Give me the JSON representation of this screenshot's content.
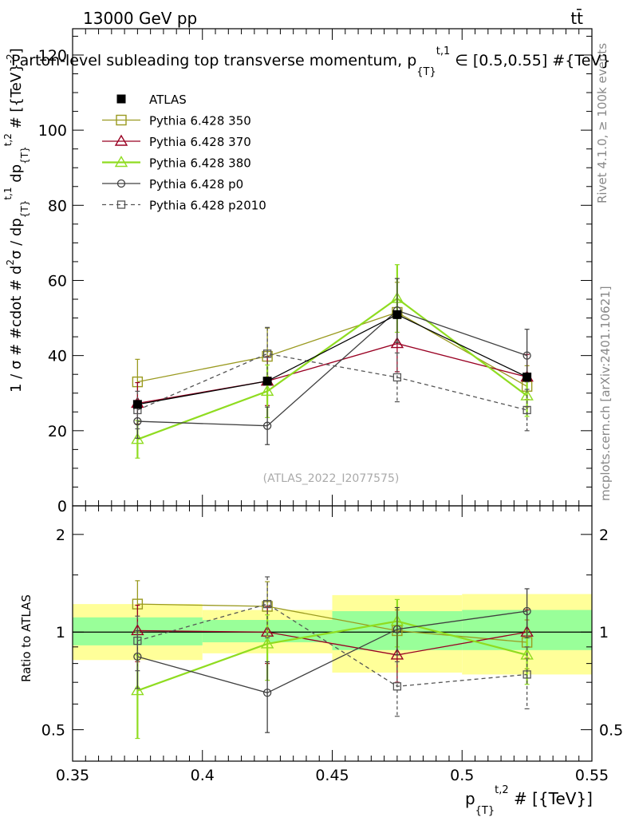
{
  "header": {
    "energy": "13000 GeV pp",
    "process": "tt̄"
  },
  "side": {
    "rivet": "Rivet 4.1.0, ≥ 100k events",
    "source": "mcplots.cern.ch [arXiv:2401.10621]"
  },
  "chart_data": [
    {
      "type": "line",
      "title": "Parton-level subleading top transverse momentum, p_{T}^{t,1} ∈ [0.5,0.55] #{TeV}",
      "title_parts": {
        "main": "Parton-level subleading top transverse momentum, p",
        "sub": "{T}",
        "sup": "t,1",
        "tail": " ∈ [0.5,0.55] #{TeV}"
      },
      "ylabel": "1 / σ # #cdot # d²σ / dp_{T}^{t,1} dp_{T}^{t,2} # [{TeV}^{-2}]",
      "ylabel_parts": {
        "a": "1 / σ # #cdot # d",
        "b": "2",
        "c": "σ / dp",
        "d": "{T}",
        "e": "t,1",
        "f": " dp",
        "g": "{T}",
        "h": "t,2",
        "i": " # [{TeV}",
        "j": "-2",
        "k": "]"
      },
      "xlim": [
        0.35,
        0.55
      ],
      "ylim": [
        0,
        127
      ],
      "yticks": [
        0,
        20,
        40,
        60,
        80,
        100,
        120
      ],
      "ytick_labels": [
        "0",
        "20",
        "40",
        "60",
        "80",
        "100",
        "120"
      ],
      "watermark": "(ATLAS_2022_I2077575)",
      "x": [
        0.375,
        0.425,
        0.475,
        0.525
      ],
      "bin_edges": [
        0.35,
        0.4,
        0.45,
        0.5,
        0.55
      ],
      "series": [
        {
          "name": "ATLAS",
          "color": "#000000",
          "marker": "square-filled",
          "dashed": false,
          "values": [
            27.0,
            33.2,
            50.9,
            34.3
          ],
          "errors": [
            0.8,
            0.8,
            1.0,
            0.8
          ]
        },
        {
          "name": "Pythia 6.428 350",
          "color": "#9a9a20",
          "marker": "square-open",
          "dashed": false,
          "values": [
            33.0,
            39.8,
            51.5,
            31.8
          ],
          "errors": [
            6.0,
            7.5,
            8.0,
            5.5
          ]
        },
        {
          "name": "Pythia 6.428 370",
          "color": "#990022",
          "marker": "triangle-open",
          "dashed": false,
          "values": [
            27.3,
            33.2,
            43.2,
            34.3
          ],
          "errors": [
            5.5,
            6.5,
            7.5,
            6.0
          ]
        },
        {
          "name": "Pythia 6.428 380",
          "color": "#8fdc20",
          "marker": "triangle-open",
          "dashed": false,
          "values": [
            17.7,
            30.5,
            55.2,
            29.3
          ],
          "errors": [
            5.0,
            7.0,
            9.0,
            5.5
          ]
        },
        {
          "name": "Pythia 6.428 p0",
          "color": "#404040",
          "marker": "circle-open",
          "dashed": false,
          "values": [
            22.5,
            21.3,
            52.0,
            40.0
          ],
          "errors": [
            4.5,
            5.0,
            8.5,
            7.0
          ]
        },
        {
          "name": "Pythia 6.428 p2010",
          "color": "#555555",
          "marker": "square-open-small",
          "dashed": true,
          "values": [
            25.5,
            40.5,
            34.2,
            25.5
          ],
          "errors": [
            5.0,
            7.0,
            6.5,
            5.5
          ]
        }
      ]
    },
    {
      "type": "line",
      "title": "",
      "ylabel": "Ratio to ATLAS",
      "xlabel": "p_{T}^{t,2} # [{TeV}]",
      "xlabel_parts": {
        "main": "p",
        "sub": "{T}",
        "sup": "t,2",
        "tail": " # [{TeV}]"
      },
      "xlim": [
        0.35,
        0.55
      ],
      "xticks": [
        0.35,
        0.4,
        0.45,
        0.5,
        0.55
      ],
      "xtick_labels": [
        "0.35",
        "0.4",
        "0.45",
        "0.5",
        "0.55"
      ],
      "ylim": [
        0.4,
        2.45
      ],
      "ylog": true,
      "yticks": [
        0.5,
        1,
        2
      ],
      "ytick_labels": [
        "0.5",
        "1",
        "2"
      ],
      "bands": {
        "bin_edges": [
          0.35,
          0.4,
          0.45,
          0.5,
          0.55
        ],
        "outer": [
          [
            0.82,
            1.22
          ],
          [
            0.86,
            1.17
          ],
          [
            0.75,
            1.3
          ],
          [
            0.74,
            1.31
          ]
        ],
        "inner": [
          [
            0.91,
            1.11
          ],
          [
            0.93,
            1.09
          ],
          [
            0.88,
            1.16
          ],
          [
            0.88,
            1.17
          ]
        ],
        "outer_color": "#ffff99",
        "inner_color": "#99ff99"
      },
      "x": [
        0.375,
        0.425,
        0.475,
        0.525
      ],
      "series": [
        {
          "name": "Pythia 6.428 350",
          "color": "#9a9a20",
          "marker": "square-open",
          "dashed": false,
          "values": [
            1.22,
            1.2,
            1.01,
            0.93
          ],
          "errors": [
            0.22,
            0.23,
            0.16,
            0.16
          ]
        },
        {
          "name": "Pythia 6.428 370",
          "color": "#990022",
          "marker": "triangle-open",
          "dashed": false,
          "values": [
            1.01,
            1.0,
            0.85,
            1.0
          ],
          "errors": [
            0.2,
            0.2,
            0.15,
            0.17
          ]
        },
        {
          "name": "Pythia 6.428 380",
          "color": "#8fdc20",
          "marker": "triangle-open",
          "dashed": false,
          "values": [
            0.66,
            0.92,
            1.08,
            0.85
          ],
          "errors": [
            0.19,
            0.21,
            0.18,
            0.16
          ]
        },
        {
          "name": "Pythia 6.428 p0",
          "color": "#404040",
          "marker": "circle-open",
          "dashed": false,
          "values": [
            0.84,
            0.65,
            1.02,
            1.16
          ],
          "errors": [
            0.17,
            0.16,
            0.17,
            0.2
          ]
        },
        {
          "name": "Pythia 6.428 p2010",
          "color": "#555555",
          "marker": "square-open-small",
          "dashed": true,
          "values": [
            0.94,
            1.22,
            0.68,
            0.74
          ],
          "errors": [
            0.18,
            0.26,
            0.13,
            0.16
          ]
        }
      ]
    }
  ]
}
